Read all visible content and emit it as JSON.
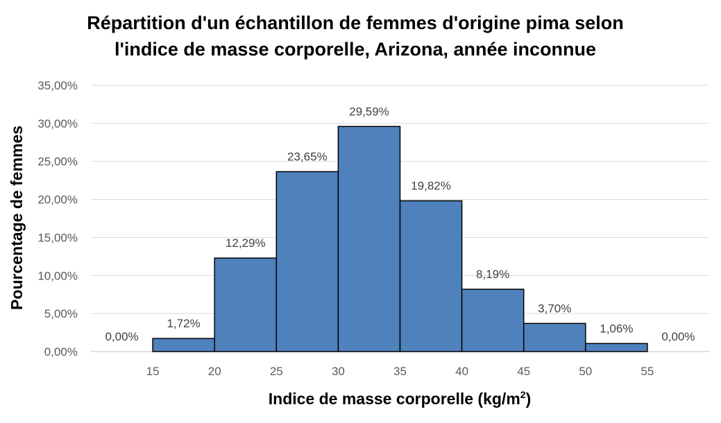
{
  "chart_data": {
    "type": "bar",
    "title_line1": "Répartition d'un échantillon de femmes d'origine pima selon",
    "title_line2": "l'indice de masse corporelle, Arizona, année inconnue",
    "xlabel": "Indice de masse corporelle (kg/m",
    "xlabel_sup": "2",
    "xlabel_end": ")",
    "ylabel": "Pourcentage de femmes",
    "x_tick_labels": [
      "15",
      "20",
      "25",
      "30",
      "35",
      "40",
      "45",
      "50",
      "55"
    ],
    "y_tick_labels": [
      "0,00%",
      "5,00%",
      "10,00%",
      "15,00%",
      "20,00%",
      "25,00%",
      "30,00%",
      "35,00%"
    ],
    "ylim": [
      0,
      35
    ],
    "grid": true,
    "bar_color": "#4F81BD",
    "bins": [
      {
        "from": 10,
        "to": 15,
        "value": 0.0,
        "label": "0,00%"
      },
      {
        "from": 15,
        "to": 20,
        "value": 1.72,
        "label": "1,72%"
      },
      {
        "from": 20,
        "to": 25,
        "value": 12.29,
        "label": "12,29%"
      },
      {
        "from": 25,
        "to": 30,
        "value": 23.65,
        "label": "23,65%"
      },
      {
        "from": 30,
        "to": 35,
        "value": 29.59,
        "label": "29,59%"
      },
      {
        "from": 35,
        "to": 40,
        "value": 19.82,
        "label": "19,82%"
      },
      {
        "from": 40,
        "to": 45,
        "value": 8.19,
        "label": "8,19%"
      },
      {
        "from": 45,
        "to": 50,
        "value": 3.7,
        "label": "3,70%"
      },
      {
        "from": 50,
        "to": 55,
        "value": 1.06,
        "label": "1,06%"
      },
      {
        "from": 55,
        "to": 60,
        "value": 0.0,
        "label": "0,00%"
      }
    ]
  }
}
